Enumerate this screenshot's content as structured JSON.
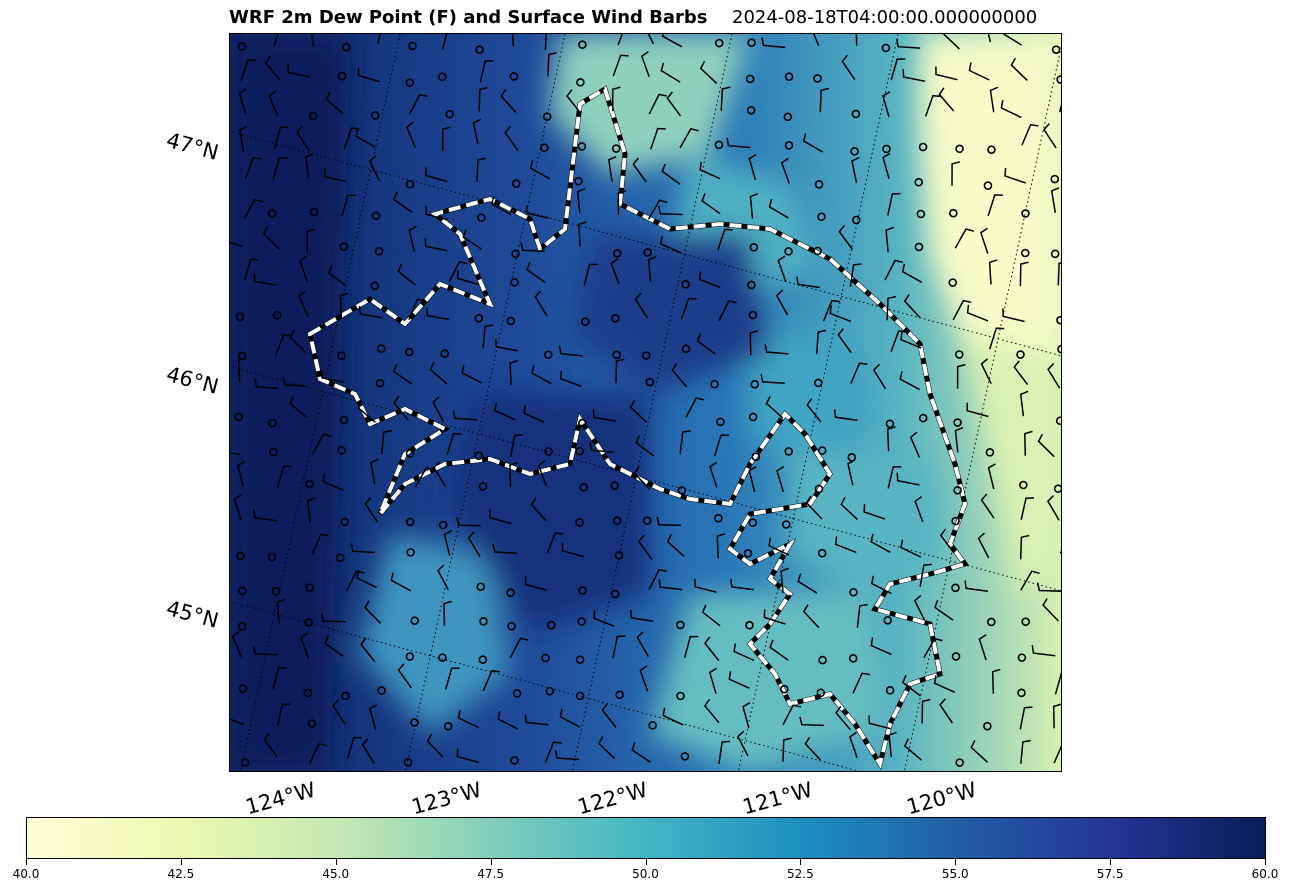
{
  "title": {
    "main": "WRF 2m Dew Point (F) and Surface Wind Barbs",
    "time": "2024-08-18T04:00:00.000000000"
  },
  "map": {
    "lat_labels": [
      "47°N",
      "46°N",
      "45°N"
    ],
    "lon_labels": [
      "124°W",
      "123°W",
      "122°W",
      "121°W",
      "120°W"
    ]
  },
  "colorbar": {
    "colormap": "YlGnBu",
    "min": 40.0,
    "max": 60.0,
    "ticks": [
      "40.0",
      "42.5",
      "45.0",
      "47.5",
      "50.0",
      "52.5",
      "55.0",
      "57.5",
      "60.0"
    ]
  }
}
